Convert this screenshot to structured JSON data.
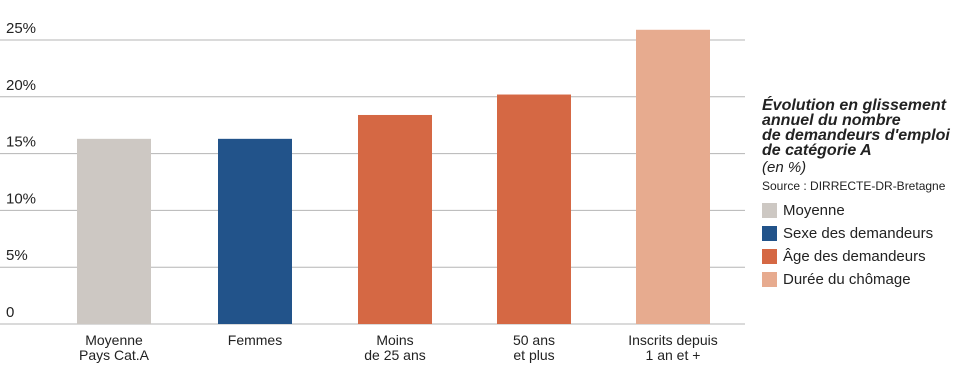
{
  "chart_data": {
    "type": "bar",
    "categories": [
      [
        "Moyenne",
        "Pays Cat.A"
      ],
      [
        "Femmes"
      ],
      [
        "Moins",
        "de 25 ans"
      ],
      [
        "50 ans",
        "et plus"
      ],
      [
        "Inscrits depuis",
        "1 an et +"
      ]
    ],
    "values": [
      16.3,
      16.3,
      18.4,
      20.2,
      25.9
    ],
    "bar_colors": [
      "#cdc8c3",
      "#22538a",
      "#d56844",
      "#d56844",
      "#e7ab8f"
    ],
    "groups": [
      "Moyenne",
      "Sexe des demandeurs",
      "Âge des demandeurs",
      "Âge des demandeurs",
      "Durée du chômage"
    ],
    "ylim": [
      0,
      25
    ],
    "yticks": [
      0,
      5,
      10,
      15,
      20,
      25
    ],
    "ytick_labels": [
      "0",
      "5%",
      "10%",
      "15%",
      "20%",
      "25%"
    ],
    "grid": true,
    "legend_position": "right"
  },
  "side": {
    "title_lines": [
      "Évolution en glissement",
      "annuel du nombre",
      "de demandeurs d'emploi",
      "de catégorie A"
    ],
    "unit": "(en %)",
    "source": "Source : DIRRECTE-DR-Bretagne"
  },
  "legend": [
    {
      "label": "Moyenne",
      "color": "#cdc8c3"
    },
    {
      "label": "Sexe des demandeurs",
      "color": "#22538a"
    },
    {
      "label": "Âge des demandeurs",
      "color": "#d56844"
    },
    {
      "label": "Durée du chômage",
      "color": "#e7ab8f"
    }
  ],
  "colors": {
    "grid": "#b5b5b5",
    "text": "#222222"
  }
}
